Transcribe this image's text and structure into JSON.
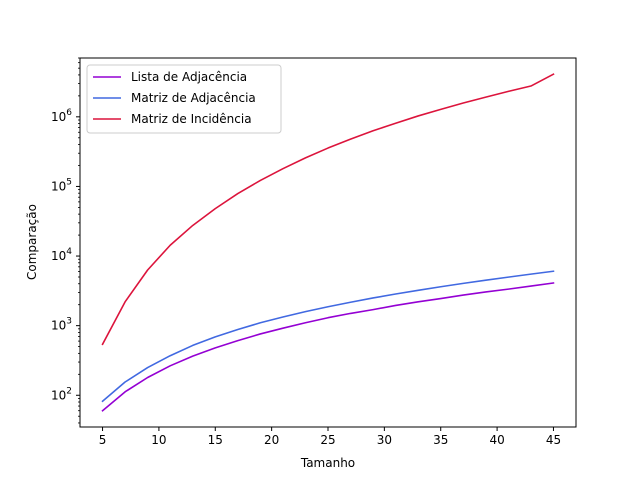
{
  "chart_data": {
    "type": "line",
    "title": "",
    "xlabel": "Tamanho",
    "ylabel": "Comparação",
    "yscale": "log",
    "xlim": [
      3,
      47
    ],
    "ylim": [
      35,
      7000000
    ],
    "grid": false,
    "legend_position": "top-left",
    "x_ticks": [
      5,
      10,
      15,
      20,
      25,
      30,
      35,
      40,
      45
    ],
    "x_tick_labels": [
      "5",
      "10",
      "15",
      "20",
      "25",
      "30",
      "35",
      "40",
      "45"
    ],
    "y_ticks": [
      100,
      1000,
      10000,
      100000,
      1000000
    ],
    "y_tick_exponents": [
      "2",
      "3",
      "4",
      "5",
      "6"
    ],
    "y_tick_base": "10",
    "x": [
      5,
      7,
      9,
      11,
      13,
      15,
      17,
      19,
      21,
      23,
      25,
      27,
      29,
      31,
      33,
      35,
      37,
      39,
      41,
      43,
      45
    ],
    "series": [
      {
        "name": "Lista de Adjacência",
        "color": "#9400d3",
        "values": [
          60,
          112,
          180,
          265,
          365,
          480,
          610,
          760,
          920,
          1100,
          1300,
          1500,
          1700,
          1950,
          2200,
          2450,
          2750,
          3050,
          3350,
          3700,
          4100
        ]
      },
      {
        "name": "Matriz de Adjacência",
        "color": "#4169e1",
        "values": [
          82,
          155,
          250,
          370,
          520,
          690,
          880,
          1100,
          1330,
          1590,
          1870,
          2170,
          2500,
          2850,
          3220,
          3620,
          4050,
          4500,
          4980,
          5500,
          6050
        ]
      },
      {
        "name": "Matriz de Incidência",
        "color": "#dc143c",
        "values": [
          540,
          2200,
          6300,
          14300,
          27500,
          48000,
          79000,
          122000,
          180000,
          257000,
          356000,
          478000,
          630000,
          810000,
          1030000,
          1280000,
          1580000,
          1920000,
          2320000,
          2770000,
          4100000
        ]
      }
    ]
  }
}
